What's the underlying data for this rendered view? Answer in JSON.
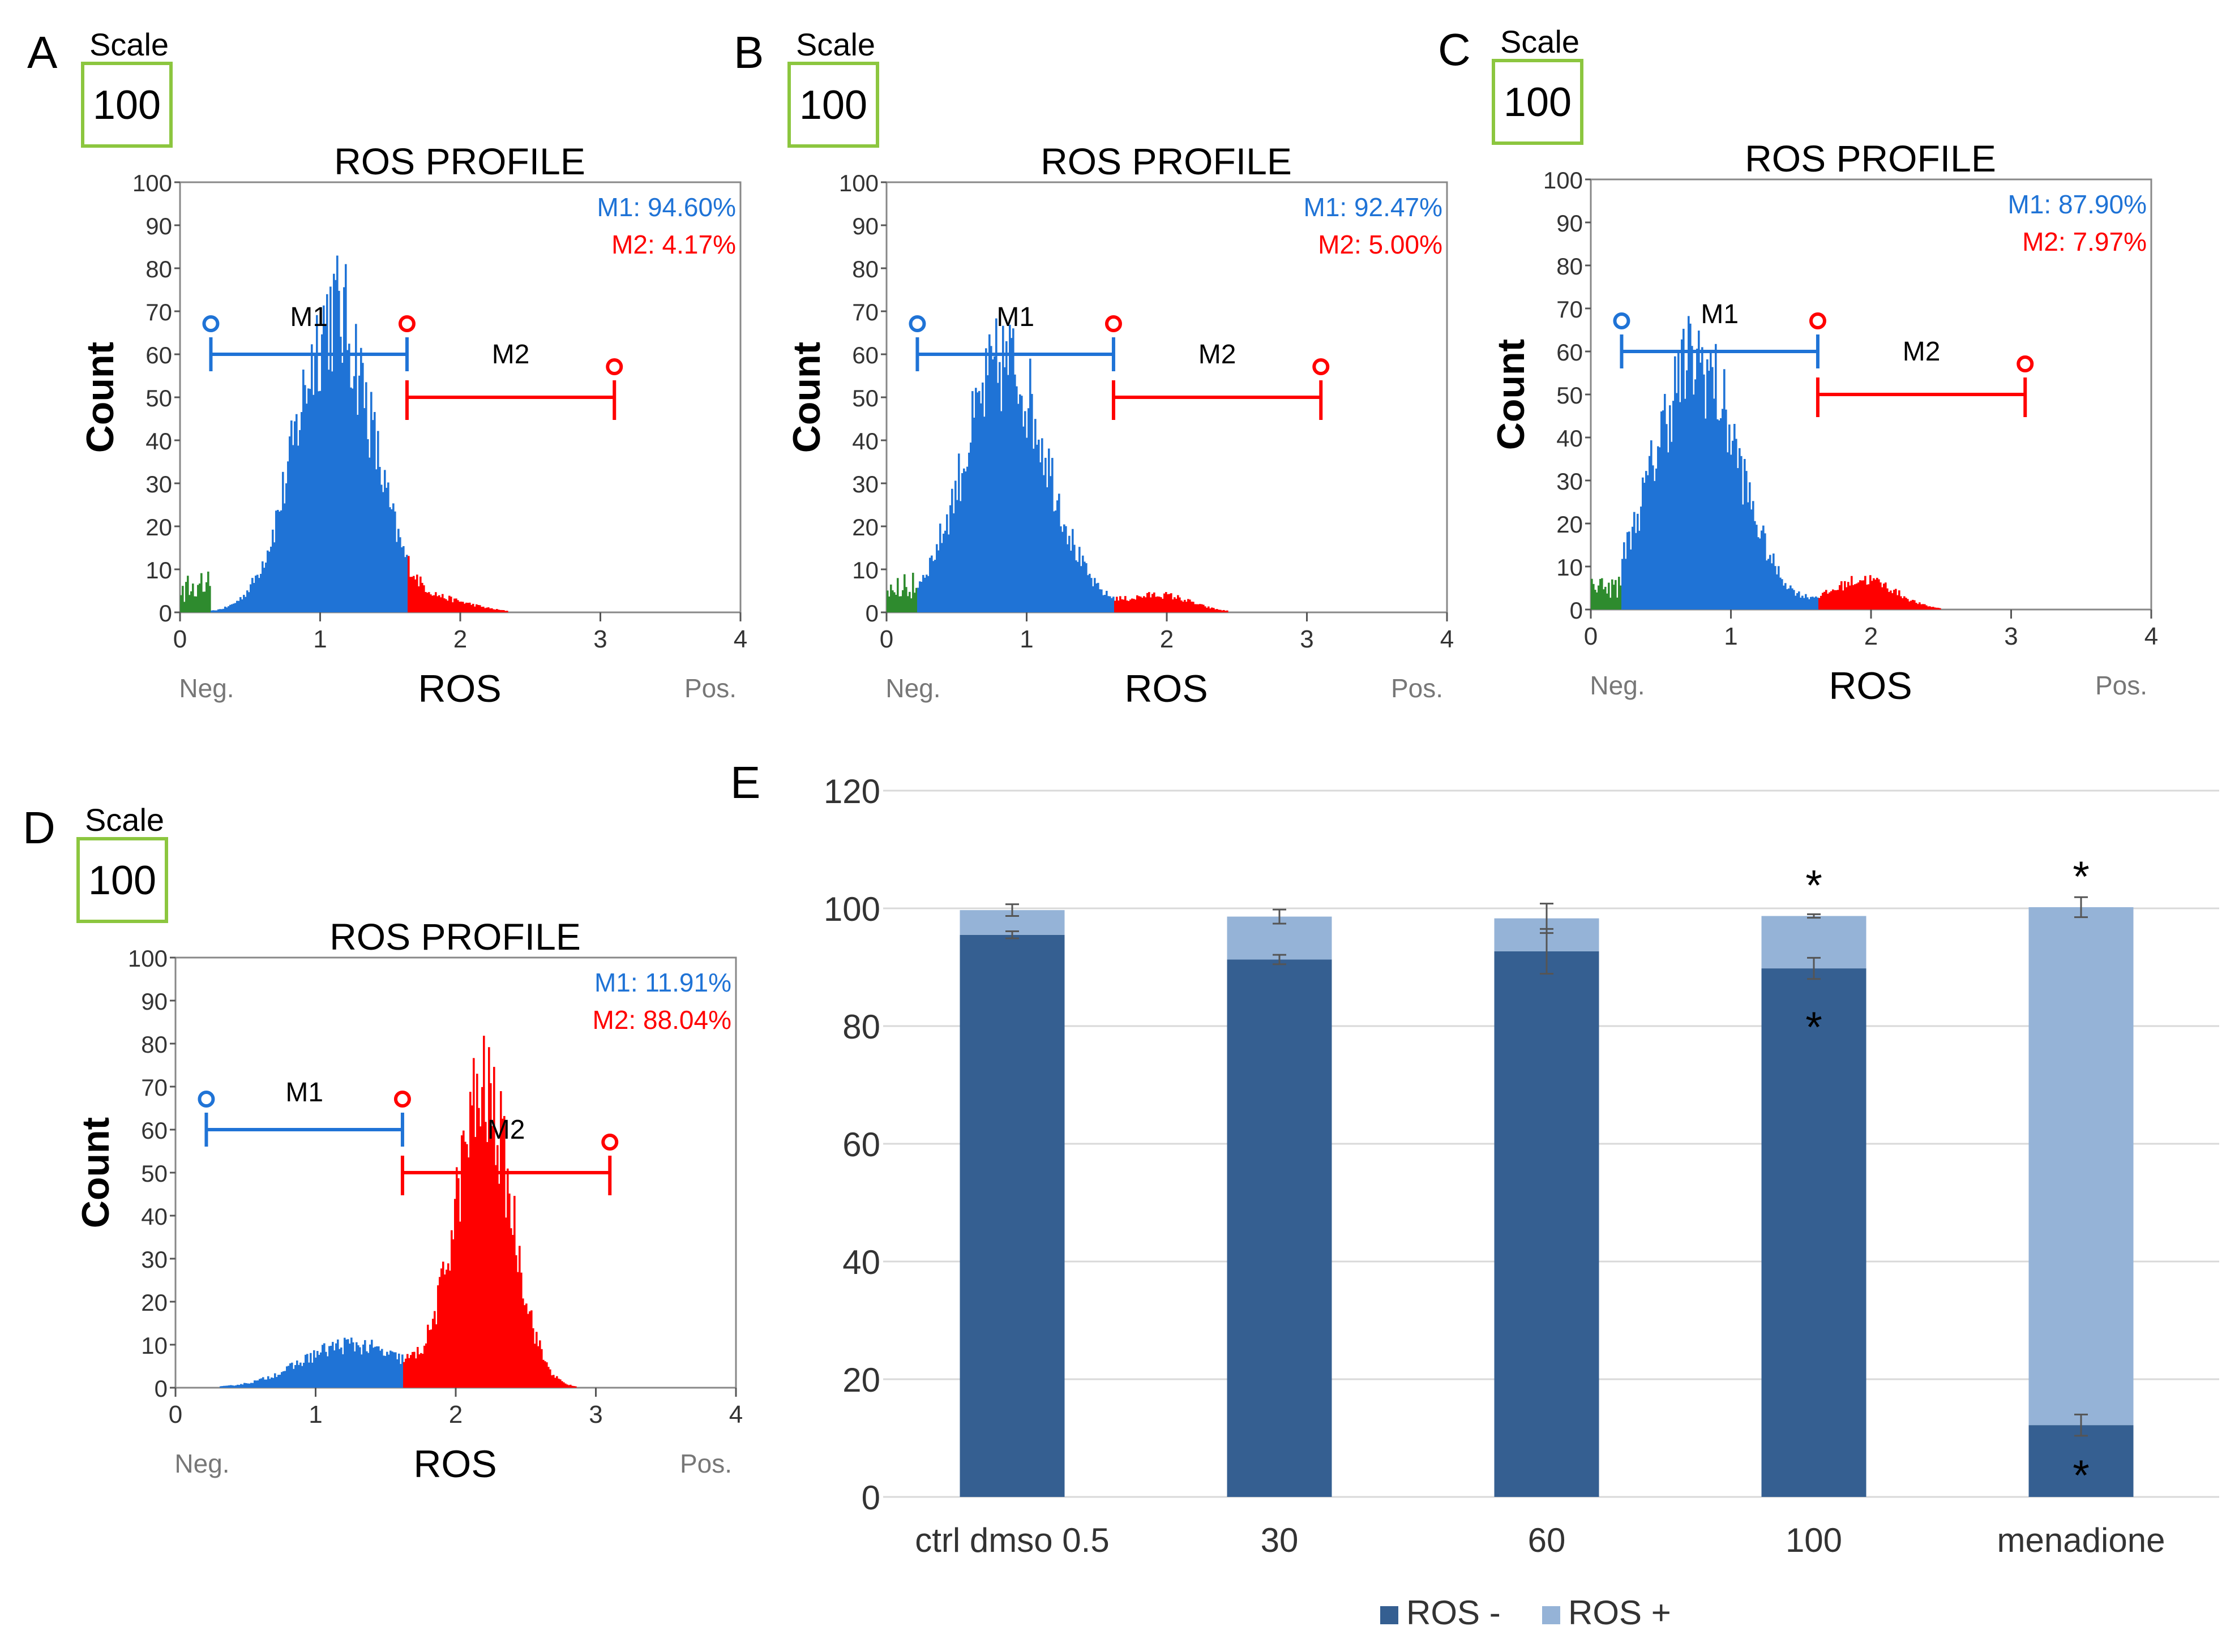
{
  "panels": [
    {
      "letter": "A",
      "scale_label": "Scale",
      "scale_value": "100",
      "title": "ROS PROFILE",
      "m1_text": "M1: 94.60%",
      "m2_text": "M2: 4.17%",
      "m1_label": "M1",
      "m2_label": "M2",
      "ylabel": "Count",
      "xlabel": "ROS",
      "neg": "Neg.",
      "pos": "Pos."
    },
    {
      "letter": "B",
      "scale_label": "Scale",
      "scale_value": "100",
      "title": "ROS PROFILE",
      "m1_text": "M1: 92.47%",
      "m2_text": "M2: 5.00%",
      "m1_label": "M1",
      "m2_label": "M2",
      "ylabel": "Count",
      "xlabel": "ROS",
      "neg": "Neg.",
      "pos": "Pos."
    },
    {
      "letter": "C",
      "scale_label": "Scale",
      "scale_value": "100",
      "title": "ROS PROFILE",
      "m1_text": "M1: 87.90%",
      "m2_text": "M2: 7.97%",
      "m1_label": "M1",
      "m2_label": "M2",
      "ylabel": "Count",
      "xlabel": "ROS",
      "neg": "Neg.",
      "pos": "Pos."
    },
    {
      "letter": "D",
      "scale_label": "Scale",
      "scale_value": "100",
      "title": "ROS PROFILE",
      "m1_text": "M1: 11.91%",
      "m2_text": "M2: 88.04%",
      "m1_label": "M1",
      "m2_label": "M2",
      "ylabel": "Count",
      "xlabel": "ROS",
      "neg": "Neg.",
      "pos": "Pos."
    }
  ],
  "chart_data": [
    {
      "type": "histogram",
      "panel": "A",
      "title": "ROS PROFILE",
      "xlabel": "ROS",
      "ylabel": "Count",
      "xlim": [
        0,
        4
      ],
      "ylim": [
        0,
        100
      ],
      "xticks": [
        "0",
        "1",
        "2",
        "3",
        "4"
      ],
      "yticks": [
        "0",
        "10",
        "20",
        "30",
        "40",
        "50",
        "60",
        "70",
        "80",
        "90",
        "100"
      ],
      "gates": {
        "M1": {
          "from": 0.22,
          "to": 1.62,
          "percent": 94.6
        },
        "M2": {
          "from": 1.62,
          "to": 3.1,
          "percent": 4.17
        }
      },
      "distribution": {
        "peak_x": 1.1,
        "peak_count": 70,
        "spread": 0.27
      },
      "colors": {
        "gate1": "#1f73d6",
        "gate2": "#ff0000",
        "debris": "#2e8b2e"
      }
    },
    {
      "type": "histogram",
      "panel": "B",
      "title": "ROS PROFILE",
      "xlabel": "ROS",
      "ylabel": "Count",
      "xlim": [
        0,
        4
      ],
      "ylim": [
        0,
        100
      ],
      "xticks": [
        "0",
        "1",
        "2",
        "3",
        "4"
      ],
      "yticks": [
        "0",
        "10",
        "20",
        "30",
        "40",
        "50",
        "60",
        "70",
        "80",
        "90",
        "100"
      ],
      "gates": {
        "M1": {
          "from": 0.22,
          "to": 1.62,
          "percent": 92.47
        },
        "M2": {
          "from": 1.62,
          "to": 3.1,
          "percent": 5.0
        }
      },
      "distribution": {
        "peak_x": 0.85,
        "peak_count": 58,
        "spread": 0.3
      },
      "colors": {
        "gate1": "#1f73d6",
        "gate2": "#ff0000",
        "debris": "#2e8b2e"
      }
    },
    {
      "type": "histogram",
      "panel": "C",
      "title": "ROS PROFILE",
      "xlabel": "ROS",
      "ylabel": "Count",
      "xlim": [
        0,
        4
      ],
      "ylim": [
        0,
        100
      ],
      "xticks": [
        "0",
        "1",
        "2",
        "3",
        "4"
      ],
      "yticks": [
        "0",
        "10",
        "20",
        "30",
        "40",
        "50",
        "60",
        "70",
        "80",
        "90",
        "100"
      ],
      "gates": {
        "M1": {
          "from": 0.22,
          "to": 1.62,
          "percent": 87.9
        },
        "M2": {
          "from": 1.62,
          "to": 3.1,
          "percent": 7.97
        }
      },
      "distribution": {
        "peak_x": 0.75,
        "peak_count": 58,
        "spread": 0.3
      },
      "colors": {
        "gate1": "#1f73d6",
        "gate2": "#ff0000",
        "debris": "#2e8b2e"
      }
    },
    {
      "type": "histogram",
      "panel": "D",
      "title": "ROS PROFILE",
      "xlabel": "ROS",
      "ylabel": "Count",
      "xlim": [
        0,
        4
      ],
      "ylim": [
        0,
        100
      ],
      "xticks": [
        "0",
        "1",
        "2",
        "3",
        "4"
      ],
      "yticks": [
        "0",
        "10",
        "20",
        "30",
        "40",
        "50",
        "60",
        "70",
        "80",
        "90",
        "100"
      ],
      "gates": {
        "M1": {
          "from": 0.22,
          "to": 1.62,
          "percent": 11.91
        },
        "M2": {
          "from": 1.62,
          "to": 3.1,
          "percent": 88.04
        }
      },
      "distribution": {
        "peak_x": 2.2,
        "peak_count": 68,
        "spread": 0.2
      },
      "colors": {
        "gate1": "#1f73d6",
        "gate2": "#ff0000",
        "debris": "#2e8b2e"
      }
    },
    {
      "type": "bar",
      "panel": "E",
      "stacked": true,
      "categories": [
        "ctrl dmso 0.5",
        "30",
        "60",
        "100",
        "menadione"
      ],
      "series": [
        {
          "name": "ROS -",
          "values": [
            95.5,
            91.3,
            92.7,
            89.8,
            12.2
          ],
          "errors": [
            0.6,
            0.8,
            3.8,
            1.8,
            1.8
          ],
          "color": "#355f91"
        },
        {
          "name": "ROS +",
          "values": [
            4.2,
            7.3,
            5.6,
            8.9,
            88.0
          ],
          "errors": [
            1.0,
            1.2,
            2.5,
            0.3,
            1.7
          ],
          "color": "#95b3d7"
        }
      ],
      "significance": [
        {
          "category": "100",
          "series": "ROS -",
          "mark": "*"
        },
        {
          "category": "100",
          "series": "ROS +",
          "mark": "*"
        },
        {
          "category": "menadione",
          "series": "ROS -",
          "mark": "*"
        },
        {
          "category": "menadione",
          "series": "ROS +",
          "mark": "*"
        }
      ],
      "ylim": [
        0,
        120
      ],
      "yticks": [
        "0",
        "20",
        "40",
        "60",
        "80",
        "100",
        "120"
      ]
    }
  ],
  "bar_panel": {
    "letter": "E"
  }
}
